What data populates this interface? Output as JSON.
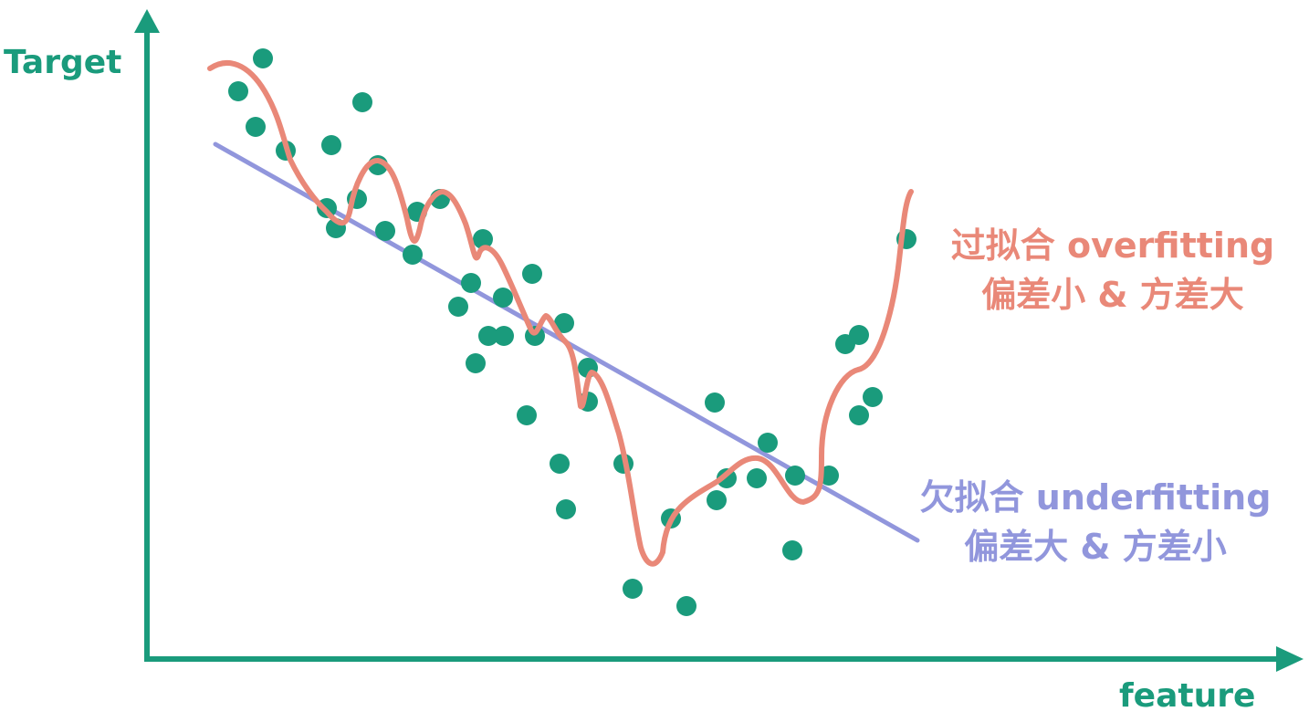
{
  "axes": {
    "y_label": "Target",
    "x_label": "feature"
  },
  "colors": {
    "axis": "#1a9b7c",
    "points": "#1a9b7c",
    "overfit": "#e98878",
    "underfit": "#9196dc"
  },
  "labels": {
    "overfit_line1": "过拟合 overfitting",
    "overfit_line2": "偏差小 & 方差大",
    "underfit_line1": "欠拟合 underfitting",
    "underfit_line2": "偏差大 & 方差小"
  },
  "chart_data": {
    "type": "scatter",
    "note_units": "arbitrary",
    "points": [
      [
        261,
        100
      ],
      [
        288,
        64
      ],
      [
        280,
        139
      ],
      [
        313,
        165
      ],
      [
        363,
        159
      ],
      [
        397,
        112
      ],
      [
        358,
        228
      ],
      [
        368,
        250
      ],
      [
        391,
        218
      ],
      [
        414,
        181
      ],
      [
        422,
        253
      ],
      [
        452,
        279
      ],
      [
        457,
        232
      ],
      [
        482,
        218
      ],
      [
        529,
        262
      ],
      [
        516,
        310
      ],
      [
        502,
        336
      ],
      [
        521,
        398
      ],
      [
        535,
        368
      ],
      [
        552,
        368
      ],
      [
        551,
        326
      ],
      [
        583,
        300
      ],
      [
        586,
        368
      ],
      [
        618,
        354
      ],
      [
        577,
        455
      ],
      [
        613,
        508
      ],
      [
        620,
        558
      ],
      [
        644,
        403
      ],
      [
        644,
        440
      ],
      [
        683,
        508
      ],
      [
        693,
        645
      ],
      [
        735,
        568
      ],
      [
        752,
        664
      ],
      [
        783,
        441
      ],
      [
        785,
        548
      ],
      [
        796,
        524
      ],
      [
        829,
        524
      ],
      [
        841,
        485
      ],
      [
        868,
        603
      ],
      [
        871,
        521
      ],
      [
        908,
        521
      ],
      [
        926,
        377
      ],
      [
        941,
        367
      ],
      [
        941,
        455
      ],
      [
        956,
        435
      ],
      [
        993,
        262
      ]
    ]
  }
}
